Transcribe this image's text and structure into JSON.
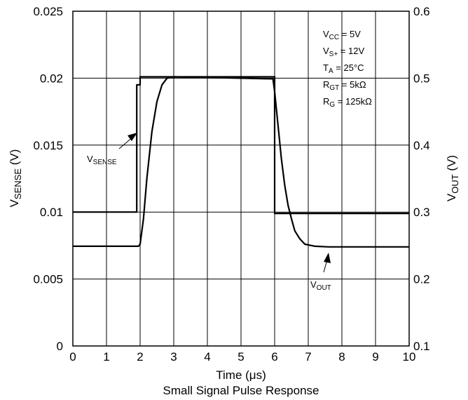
{
  "chart_data": {
    "type": "line",
    "title": "Small Signal Pulse Response",
    "xlabel": "Time (μs)",
    "ylabel_left": {
      "main": "V",
      "sub": "SENSE",
      "unit": " (V)"
    },
    "ylabel_right": {
      "main": "V",
      "sub": "OUT",
      "unit": " (V)"
    },
    "xlim": [
      0,
      10
    ],
    "ylim_left": [
      0,
      0.025
    ],
    "ylim_right": [
      0.1,
      0.6
    ],
    "x_ticks": [
      "0",
      "1",
      "2",
      "3",
      "4",
      "5",
      "6",
      "7",
      "8",
      "9",
      "10"
    ],
    "y_left_ticks": [
      "0",
      "0.005",
      "0.01",
      "0.015",
      "0.02",
      "0.025"
    ],
    "y_right_ticks": [
      "0.1",
      "0.2",
      "0.3",
      "0.4",
      "0.5",
      "0.6"
    ],
    "grid": true,
    "series": [
      {
        "name": "VSENSE",
        "axis": "left",
        "color": "#000000",
        "x": [
          0,
          1.9,
          1.9,
          2.0,
          2.0,
          6.0,
          6.0,
          10
        ],
        "y": [
          0.01,
          0.01,
          0.0195,
          0.0195,
          0.0201,
          0.0201,
          0.0099,
          0.0099
        ]
      },
      {
        "name": "VOUT",
        "axis": "right",
        "color": "#000000",
        "x": [
          0,
          1.95,
          2.0,
          2.1,
          2.2,
          2.35,
          2.5,
          2.65,
          2.8,
          3.0,
          4.0,
          5.0,
          5.95,
          6.0,
          6.1,
          6.2,
          6.3,
          6.4,
          6.5,
          6.6,
          6.75,
          6.9,
          7.2,
          7.6,
          8.0,
          9.0,
          10
        ],
        "y": [
          0.249,
          0.249,
          0.252,
          0.29,
          0.35,
          0.42,
          0.465,
          0.49,
          0.5,
          0.502,
          0.501,
          0.5,
          0.499,
          0.48,
          0.43,
          0.38,
          0.34,
          0.31,
          0.29,
          0.272,
          0.26,
          0.252,
          0.249,
          0.248,
          0.248,
          0.248,
          0.248
        ]
      }
    ],
    "annotations": {
      "conditions": [
        {
          "main": "V",
          "sub": "CC",
          "rest": " = 5V"
        },
        {
          "main": "V",
          "sub": "S+",
          "rest": " = 12V"
        },
        {
          "main": "T",
          "sub": "A",
          "rest": " = 25°C"
        },
        {
          "main": "R",
          "sub": "GT",
          "rest": " = 5kΩ"
        },
        {
          "main": "R",
          "sub": "G",
          "rest": " = 125kΩ"
        }
      ],
      "vsense_label": {
        "main": "V",
        "sub": "SENSE"
      },
      "vout_label": {
        "main": "V",
        "sub": "OUT"
      }
    }
  }
}
